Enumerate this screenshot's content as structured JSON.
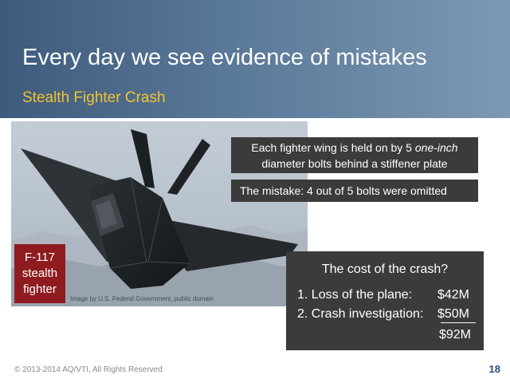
{
  "slide": {
    "title": "Every day we see evidence of mistakes",
    "subtitle": "Stealth Fighter Crash",
    "page_number": "18",
    "footer": "© 2013-2014 AQ/VTI, All Rights Reserved"
  },
  "photo": {
    "label_lines": [
      "F-117",
      "stealth",
      "fighter"
    ],
    "credit": "Image by U.S. Federal Government, public domain"
  },
  "callouts": {
    "wing_line1": "Each fighter wing is held on by 5 ",
    "wing_line1_italic": "one-inch",
    "wing_line2": "diameter bolts behind a stiffener plate",
    "mistake": "The mistake: 4 out of 5 bolts were omitted"
  },
  "cost": {
    "title": "The cost of the crash?",
    "items": [
      {
        "label": "1. Loss of the plane:",
        "value": "$42M"
      },
      {
        "label": "2. Crash investigation:",
        "value": "$50M"
      }
    ],
    "total": "$92M"
  },
  "colors": {
    "header_dark": "#3e5a7c",
    "header_light": "#7c98b3",
    "subtitle_gold": "#f2c230",
    "label_red": "#8e1b1f",
    "callout_box": "#3b3b3b",
    "page_number_blue": "#2c4e86"
  }
}
